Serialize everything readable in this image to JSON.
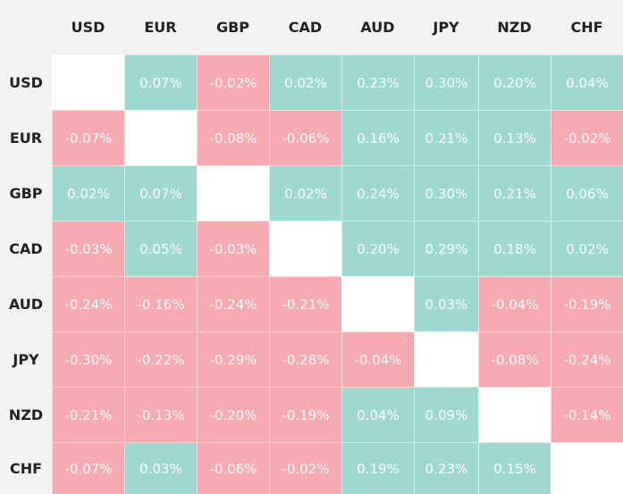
{
  "chart_data": {
    "type": "heatmap",
    "title": "",
    "columns": [
      "USD",
      "EUR",
      "GBP",
      "CAD",
      "AUD",
      "JPY",
      "NZD",
      "CHF"
    ],
    "rows": [
      "USD",
      "EUR",
      "GBP",
      "CAD",
      "AUD",
      "JPY",
      "NZD",
      "CHF"
    ],
    "unit": "%",
    "values": [
      [
        null,
        0.07,
        -0.02,
        0.02,
        0.23,
        0.3,
        0.2,
        0.04
      ],
      [
        -0.07,
        null,
        -0.08,
        -0.06,
        0.16,
        0.21,
        0.13,
        -0.02
      ],
      [
        0.02,
        0.07,
        null,
        0.02,
        0.24,
        0.3,
        0.21,
        0.06
      ],
      [
        -0.03,
        0.05,
        -0.03,
        null,
        0.2,
        0.29,
        0.18,
        0.02
      ],
      [
        -0.24,
        -0.16,
        -0.24,
        -0.21,
        null,
        0.03,
        -0.04,
        -0.19
      ],
      [
        -0.3,
        -0.22,
        -0.29,
        -0.28,
        -0.04,
        null,
        -0.08,
        -0.24
      ],
      [
        -0.21,
        -0.13,
        -0.2,
        -0.19,
        0.04,
        0.09,
        null,
        -0.14
      ],
      [
        -0.07,
        0.03,
        -0.06,
        -0.02,
        0.19,
        0.23,
        0.15,
        null
      ]
    ],
    "labels": [
      [
        "",
        "0.07%",
        "-0.02%",
        "0.02%",
        "0.23%",
        "0.30%",
        "0.20%",
        "0.04%"
      ],
      [
        "-0.07%",
        "",
        "-0.08%",
        "-0.06%",
        "0.16%",
        "0.21%",
        "0.13%",
        "-0.02%"
      ],
      [
        "0.02%",
        "0.07%",
        "",
        "0.02%",
        "0.24%",
        "0.30%",
        "0.21%",
        "0.06%"
      ],
      [
        "-0.03%",
        "0.05%",
        "-0.03%",
        "",
        "0.20%",
        "0.29%",
        "0.18%",
        "0.02%"
      ],
      [
        "-0.24%",
        "-0.16%",
        "-0.24%",
        "-0.21%",
        "",
        "0.03%",
        "-0.04%",
        "-0.19%"
      ],
      [
        "-0.30%",
        "-0.22%",
        "-0.29%",
        "-0.28%",
        "-0.04%",
        "",
        "-0.08%",
        "-0.24%"
      ],
      [
        "-0.21%",
        "-0.13%",
        "-0.20%",
        "-0.19%",
        "0.04%",
        "0.09%",
        "",
        "-0.14%"
      ],
      [
        "-0.07%",
        "0.03%",
        "-0.06%",
        "-0.02%",
        "0.19%",
        "0.23%",
        "0.15%",
        ""
      ]
    ],
    "grid": true,
    "legend": "none"
  },
  "colors": {
    "positive": "#9ed8cf",
    "negative": "#f7aab2",
    "diagonal": "#ffffff",
    "header_bg": "#f2f2f2",
    "header_text": "#222222",
    "cell_text": "#ffffff"
  }
}
